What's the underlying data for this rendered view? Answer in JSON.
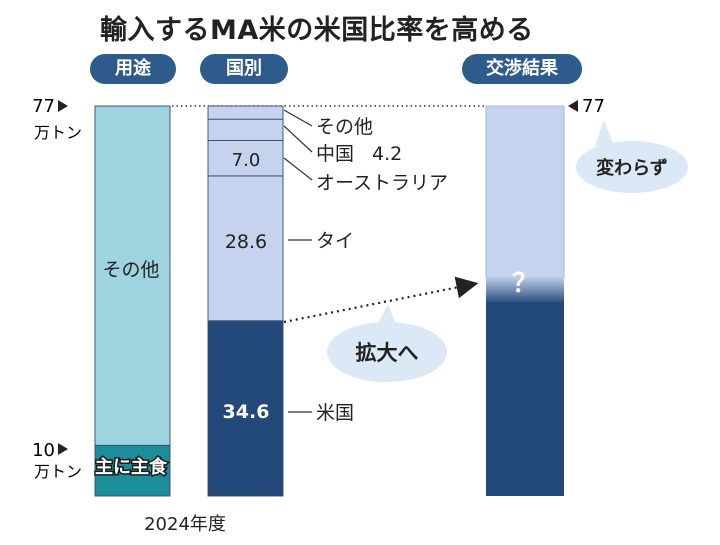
{
  "title": "輸入するMA米の米国比率を高める",
  "headers": {
    "usage": "用途",
    "by_country": "国別",
    "result": "交渉結果"
  },
  "chart_data": {
    "type": "bar",
    "stacked": true,
    "unit": "万トン",
    "total": 77,
    "xlabel": "2024年度",
    "bars": [
      {
        "name": "用途",
        "segments": [
          {
            "label": "主に主食",
            "value": 10
          },
          {
            "label": "その他",
            "value": 67
          }
        ]
      },
      {
        "name": "国別",
        "segments": [
          {
            "label": "米国",
            "value": 34.6,
            "value_label": "34.6"
          },
          {
            "label": "タイ",
            "value": 28.6,
            "value_label": "28.6"
          },
          {
            "label": "オーストラリア",
            "value": 7.0,
            "value_label": "7.0"
          },
          {
            "label": "中国",
            "value": 4.2,
            "value_label": "4.2"
          },
          {
            "label": "その他",
            "value": 2.6
          }
        ]
      }
    ],
    "axis_labels": {
      "top_value": "77",
      "top_unit": "万トン",
      "low_value": "10",
      "low_unit": "万トン",
      "right_value": "77"
    },
    "callouts": {
      "unchanged": "変わらず",
      "expand": "拡大へ",
      "unknown": "？"
    },
    "colors": {
      "light_cyan": "#9ed4e0",
      "teal": "#1c8d9b",
      "navy": "#23497a",
      "pale_blue": "#c5d3ef",
      "pill": "#2d5b8c",
      "callout": "#dbe8f6"
    }
  }
}
